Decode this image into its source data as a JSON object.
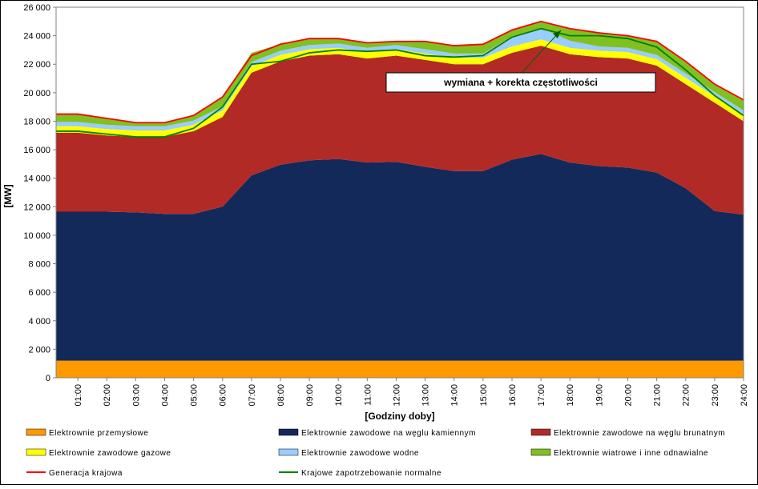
{
  "chart_data": {
    "type": "stacked-area",
    "y_label": "[MW]",
    "x_label": "[Godziny doby]",
    "annotation": "wymiana + korekta częstotliwości",
    "categories": [
      "01:00",
      "02:00",
      "03:00",
      "04:00",
      "05:00",
      "06:00",
      "07:00",
      "08:00",
      "09:00",
      "10:00",
      "11:00",
      "12:00",
      "13:00",
      "14:00",
      "15:00",
      "16:00",
      "17:00",
      "18:00",
      "19:00",
      "20:00",
      "21:00",
      "22:00",
      "23:00",
      "24:00"
    ],
    "series": [
      {
        "name": "Elektrownie przemysłowe",
        "color": "#ff9900",
        "values": [
          1200,
          1200,
          1200,
          1200,
          1200,
          1200,
          1200,
          1200,
          1200,
          1200,
          1200,
          1200,
          1200,
          1200,
          1200,
          1200,
          1200,
          1200,
          1200,
          1200,
          1200,
          1200,
          1200,
          1200
        ]
      },
      {
        "name": "Elektrownie zawodowe na węglu kamiennym",
        "color": "#13295a",
        "values": [
          10450,
          10450,
          10400,
          10300,
          10300,
          10800,
          13000,
          13750,
          14050,
          14150,
          13900,
          13950,
          13600,
          13300,
          13300,
          14100,
          14500,
          13900,
          13650,
          13550,
          13200,
          12100,
          10500,
          10250
        ]
      },
      {
        "name": "Elektrownie zawodowe na węglu brunatnym",
        "color": "#b22a26",
        "values": [
          5550,
          5350,
          5300,
          5400,
          5800,
          6300,
          7200,
          7250,
          7350,
          7350,
          7300,
          7450,
          7500,
          7500,
          7500,
          7500,
          7600,
          7600,
          7650,
          7650,
          7500,
          7300,
          7600,
          6550
        ]
      },
      {
        "name": "Elektrownie zawodowe gazowe",
        "color": "#ffff00",
        "values": [
          450,
          450,
          450,
          450,
          450,
          450,
          450,
          450,
          450,
          450,
          450,
          450,
          450,
          450,
          450,
          450,
          450,
          450,
          450,
          450,
          450,
          450,
          450,
          450
        ]
      },
      {
        "name": "Elektrownie zawodowe wodne",
        "color": "#99ccff",
        "values": [
          300,
          300,
          300,
          300,
          300,
          300,
          300,
          300,
          300,
          300,
          300,
          300,
          300,
          300,
          300,
          700,
          800,
          500,
          300,
          300,
          300,
          300,
          300,
          300
        ]
      },
      {
        "name": "Elektrownie wiatrowe i inne odnawialne",
        "color": "#80c020",
        "values": [
          550,
          450,
          250,
          250,
          350,
          650,
          650,
          450,
          450,
          350,
          350,
          250,
          550,
          550,
          650,
          450,
          450,
          850,
          950,
          850,
          950,
          850,
          550,
          750
        ]
      }
    ],
    "lines": [
      {
        "name": "Generacja krajowa",
        "color": "#ff0000",
        "values": [
          18500,
          18200,
          17900,
          17900,
          18400,
          19700,
          22600,
          23400,
          23800,
          23800,
          23500,
          23600,
          23600,
          23300,
          23400,
          24400,
          25000,
          24500,
          24200,
          24000,
          23600,
          22200,
          20600,
          19500
        ]
      },
      {
        "name": "Krajowe zapotrzebowanie normalne",
        "color": "#008000",
        "values": [
          17300,
          17100,
          16900,
          16900,
          17500,
          19000,
          22000,
          22200,
          22800,
          23000,
          22900,
          23000,
          22600,
          22500,
          22600,
          23900,
          24500,
          24000,
          24000,
          23800,
          23200,
          21600,
          19800,
          18400
        ]
      }
    ],
    "ylim": [
      0,
      26000
    ],
    "yticks": [
      0,
      {
        "value": 2000,
        "label": "2 000"
      },
      {
        "value": 4000,
        "label": "4 000"
      },
      {
        "value": 6000,
        "label": "6 000"
      },
      {
        "value": 8000,
        "label": "8 000"
      },
      {
        "value": 10000,
        "label": "10 000"
      },
      {
        "value": 12000,
        "label": "12 000"
      },
      {
        "value": 14000,
        "label": "14 000"
      },
      {
        "value": 16000,
        "label": "16 000"
      },
      {
        "value": 18000,
        "label": "18 000"
      },
      {
        "value": 20000,
        "label": "20 000"
      },
      {
        "value": 22000,
        "label": "22 000"
      },
      {
        "value": 24000,
        "label": "24 000"
      },
      {
        "value": 26000,
        "label": "26 000"
      }
    ],
    "grid": false
  }
}
